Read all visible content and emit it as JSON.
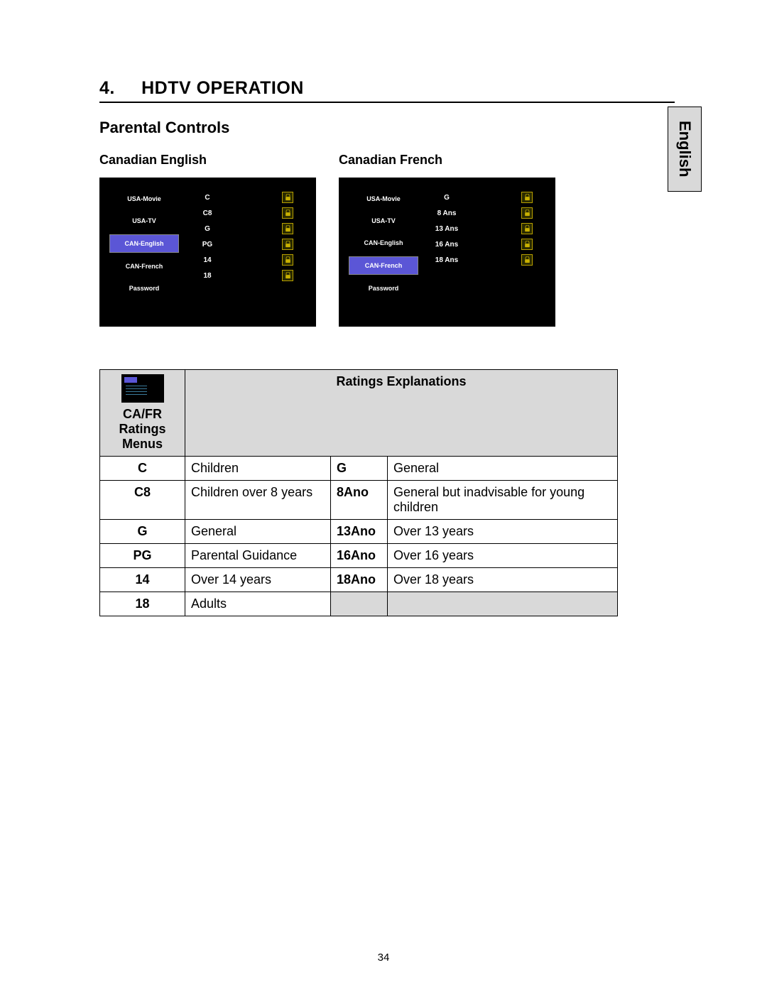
{
  "language_tab": "English",
  "section": {
    "number": "4.",
    "title": "HDTV OPERATION"
  },
  "subsection": "Parental Controls",
  "screenshots": {
    "left": {
      "label": "Canadian English",
      "menu_items": [
        "USA-Movie",
        "USA-TV",
        "CAN-English",
        "CAN-French",
        "Password"
      ],
      "selected_index": 2,
      "ratings": [
        "C",
        "C8",
        "G",
        "PG",
        "14",
        "18"
      ]
    },
    "right": {
      "label": "Canadian French",
      "menu_items": [
        "USA-Movie",
        "USA-TV",
        "CAN-English",
        "CAN-French",
        "Password"
      ],
      "selected_index": 3,
      "ratings": [
        "G",
        "8 Ans",
        "13 Ans",
        "16 Ans",
        "18 Ans"
      ]
    }
  },
  "table": {
    "header_left": "CA/FR Ratings Menus",
    "header_right": "Ratings Explanations",
    "rows": [
      {
        "a": "C",
        "ad": "Children",
        "b": "G",
        "bd": "General"
      },
      {
        "a": "C8",
        "ad": "Children over 8 years",
        "b": "8Ano",
        "bd": "General but inadvisable for young children"
      },
      {
        "a": "G",
        "ad": "General",
        "b": "13Ano",
        "bd": "Over 13 years"
      },
      {
        "a": "PG",
        "ad": "Parental Guidance",
        "b": "16Ano",
        "bd": "Over 16 years"
      },
      {
        "a": "14",
        "ad": "Over 14 years",
        "b": "18Ano",
        "bd": "Over 18 years"
      },
      {
        "a": "18",
        "ad": "Adults",
        "b": "",
        "bd": "",
        "grey": true
      }
    ]
  },
  "page_number": "34",
  "colors": {
    "selected_bg": "#5b56d6",
    "grey_bg": "#d9d9d9",
    "lock_border": "#b8a000"
  }
}
